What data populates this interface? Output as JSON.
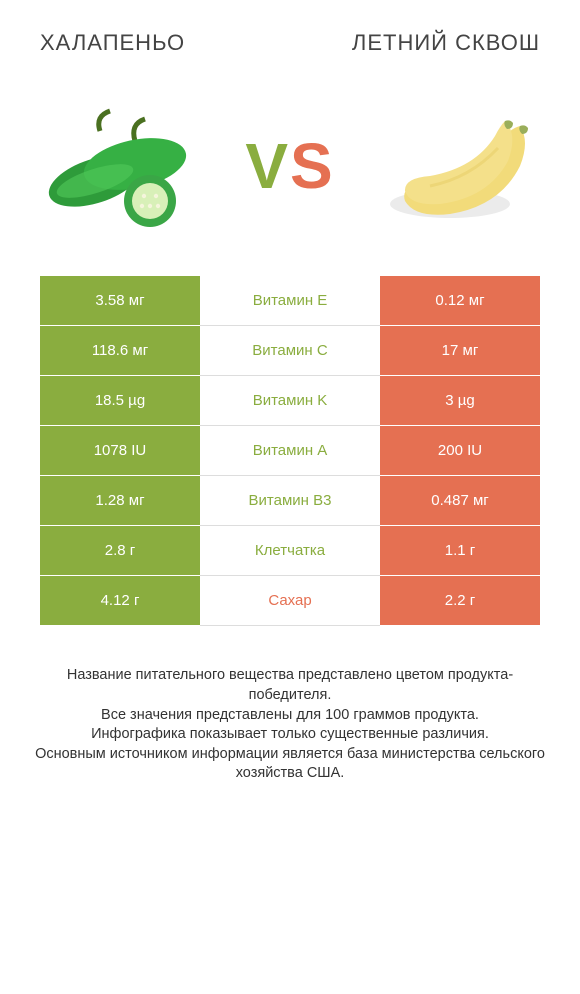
{
  "header": {
    "left": "Халапеньо",
    "right": "Летний сквош"
  },
  "vs": {
    "v": "V",
    "s": "S"
  },
  "colors": {
    "left": "#8aad3f",
    "right": "#e57052",
    "background": "#ffffff",
    "text": "#333333"
  },
  "rows": [
    {
      "left": "3.58 мг",
      "label": "Витамин E",
      "right": "0.12 мг",
      "winner": "left"
    },
    {
      "left": "118.6 мг",
      "label": "Витамин C",
      "right": "17 мг",
      "winner": "left"
    },
    {
      "left": "18.5 µg",
      "label": "Витамин K",
      "right": "3 µg",
      "winner": "left"
    },
    {
      "left": "1078 IU",
      "label": "Витамин A",
      "right": "200 IU",
      "winner": "left"
    },
    {
      "left": "1.28 мг",
      "label": "Витамин B3",
      "right": "0.487 мг",
      "winner": "left"
    },
    {
      "left": "2.8 г",
      "label": "Клетчатка",
      "right": "1.1 г",
      "winner": "left"
    },
    {
      "left": "4.12 г",
      "label": "Сахар",
      "right": "2.2 г",
      "winner": "right"
    }
  ],
  "footer": {
    "line1": "Название питательного вещества представлено цветом продукта-победителя.",
    "line2": "Все значения представлены для 100 граммов продукта.",
    "line3": "Инфографика показывает только существенные различия.",
    "line4": "Основным источником информации является база министерства сельского хозяйства США."
  }
}
